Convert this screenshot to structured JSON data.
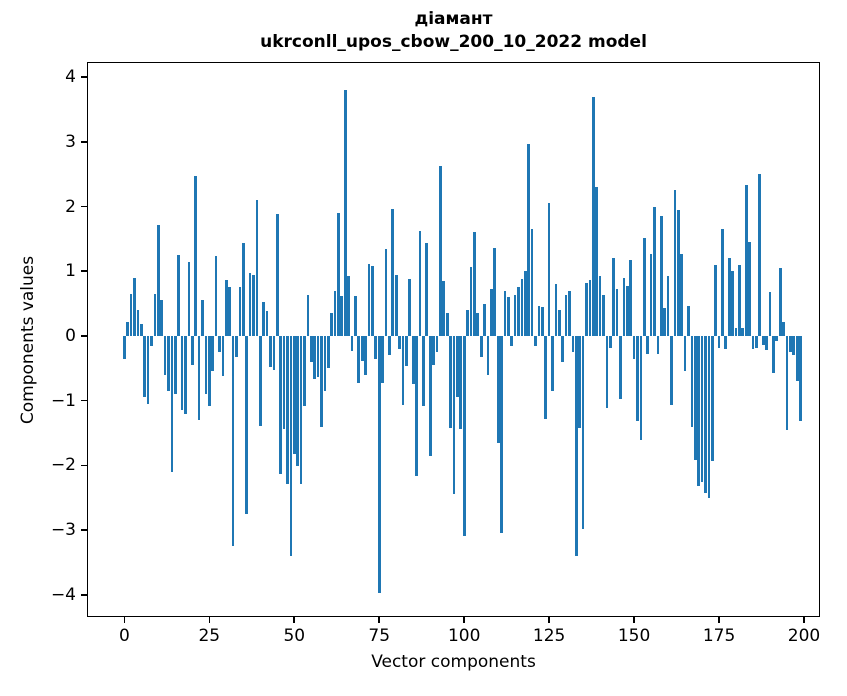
{
  "figure": {
    "title_line1": "діамант",
    "title_line2": "ukrconll_upos_cbow_200_10_2022 model"
  },
  "chart_data": {
    "type": "bar",
    "title": "діамант\nukrconll_upos_cbow_200_10_2022 model",
    "xlabel": "Vector components",
    "ylabel": "Components values",
    "x_description": "vector component index 0..199",
    "bar_color": "#1f77b4",
    "grid": false,
    "legend": "none",
    "xlim": [
      -10.7,
      205.0
    ],
    "ylim": [
      -4.36,
      4.22
    ],
    "xticks": [
      0,
      25,
      50,
      75,
      100,
      125,
      150,
      175,
      200
    ],
    "yticks": [
      -4,
      -3,
      -2,
      -1,
      0,
      1,
      2,
      3,
      4
    ],
    "values": [
      -0.35,
      0.22,
      0.65,
      0.9,
      0.4,
      0.18,
      -0.95,
      -1.05,
      -0.15,
      0.65,
      1.72,
      0.55,
      -0.6,
      -0.85,
      -2.1,
      -0.9,
      1.25,
      -1.15,
      -1.2,
      1.15,
      -0.45,
      2.48,
      -1.3,
      0.55,
      -0.9,
      -1.09,
      -0.54,
      1.24,
      -0.25,
      -0.62,
      0.86,
      0.75,
      -3.25,
      -0.33,
      0.75,
      1.44,
      -2.75,
      0.98,
      0.95,
      2.1,
      -1.39,
      0.53,
      0.38,
      -0.48,
      -0.53,
      1.88,
      -2.14,
      -1.44,
      -2.29,
      -3.4,
      -1.82,
      -2.01,
      -2.29,
      -1.08,
      0.64,
      -0.4,
      -0.67,
      -0.64,
      -1.4,
      -0.85,
      -0.5,
      0.35,
      0.7,
      1.9,
      0.62,
      3.8,
      0.93,
      -0.23,
      0.62,
      -0.72,
      -0.38,
      -0.6,
      1.12,
      1.08,
      -0.35,
      -3.97,
      -0.72,
      1.34,
      -0.3,
      1.96,
      0.95,
      -0.2,
      -1.06,
      -0.46,
      0.88,
      -0.75,
      -2.16,
      1.62,
      -1.08,
      1.43,
      -1.85,
      -0.45,
      -0.25,
      2.63,
      0.85,
      0.36,
      -1.42,
      -2.45,
      -0.95,
      -1.44,
      -3.1,
      0.4,
      1.06,
      1.6,
      0.36,
      -0.33,
      0.49,
      -0.6,
      0.72,
      1.36,
      -1.65,
      -3.05,
      0.7,
      0.6,
      -0.15,
      0.64,
      0.75,
      0.88,
      1.0,
      2.97,
      1.65,
      -0.15,
      0.46,
      0.45,
      -1.29,
      2.05,
      -0.85,
      0.8,
      0.4,
      -0.41,
      0.64,
      0.7,
      -0.25,
      -3.4,
      -1.42,
      -2.98,
      0.82,
      0.86,
      3.7,
      2.3,
      0.93,
      0.64,
      -1.11,
      -0.18,
      1.21,
      0.72,
      -0.98,
      0.9,
      0.78,
      1.18,
      -0.36,
      -1.31,
      -1.61,
      1.52,
      -0.28,
      1.26,
      2.0,
      -0.28,
      1.85,
      0.44,
      0.93,
      -1.06,
      2.25,
      1.95,
      1.26,
      -0.54,
      0.46,
      -1.41,
      -1.91,
      -2.32,
      -2.25,
      -2.42,
      -2.5,
      -1.93,
      1.1,
      -0.18,
      1.65,
      -0.2,
      1.2,
      1.0,
      0.12,
      1.1,
      0.12,
      2.33,
      1.45,
      -0.2,
      -0.18,
      2.51,
      -0.14,
      -0.21,
      0.68,
      -0.57,
      -0.08,
      1.05,
      0.21,
      -1.45,
      -0.25,
      -0.3,
      -0.7,
      -1.31
    ]
  }
}
